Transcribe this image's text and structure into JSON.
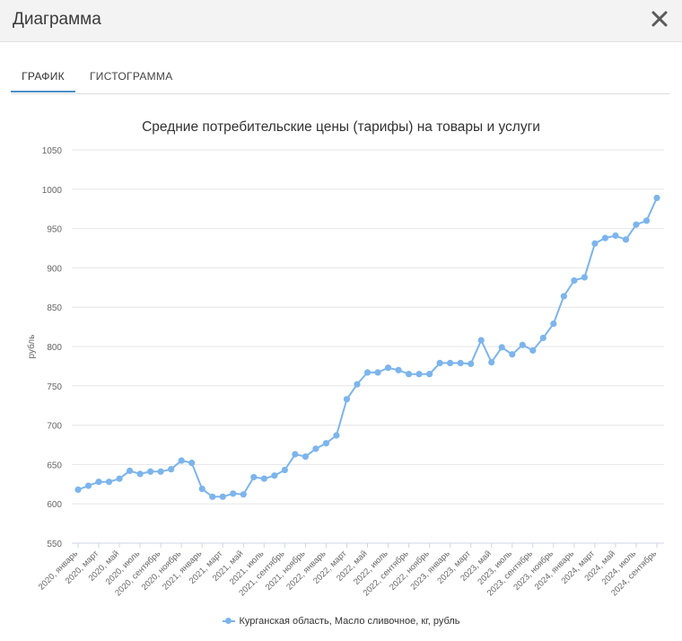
{
  "window": {
    "title": "Диаграмма",
    "close_icon": "close-icon"
  },
  "tabs": [
    {
      "label": "ГРАФИК",
      "active": true
    },
    {
      "label": "ГИСТОГРАММА",
      "active": false
    }
  ],
  "colors": {
    "series": "#7cb5ec",
    "grid": "#e6e6e6",
    "tab_underline": "#4a90c8"
  },
  "chart_data": {
    "type": "line",
    "title": "Средние потребительские цены (тарифы) на товары и услуги",
    "ylabel": "рубль",
    "xlabel": "",
    "ylim": [
      550,
      1050
    ],
    "yticks": [
      550,
      600,
      650,
      700,
      750,
      800,
      850,
      900,
      950,
      1000,
      1050
    ],
    "grid": true,
    "legend_position": "bottom",
    "x": [
      "2020, январь",
      "2020, февраль",
      "2020, март",
      "2020, апрель",
      "2020, май",
      "2020, июнь",
      "2020, июль",
      "2020, август",
      "2020, сентябрь",
      "2020, октябрь",
      "2020, ноябрь",
      "2020, декабрь",
      "2021, январь",
      "2021, февраль",
      "2021, март",
      "2021, апрель",
      "2021, май",
      "2021, июнь",
      "2021, июль",
      "2021, август",
      "2021, сентябрь",
      "2021, октябрь",
      "2021, ноябрь",
      "2021, декабрь",
      "2022, январь",
      "2022, февраль",
      "2022, март",
      "2022, апрель",
      "2022, май",
      "2022, июнь",
      "2022, июль",
      "2022, август",
      "2022, сентябрь",
      "2022, октябрь",
      "2022, ноябрь",
      "2022, декабрь",
      "2023, январь",
      "2023, февраль",
      "2023, март",
      "2023, апрель",
      "2023, май",
      "2023, июнь",
      "2023, июль",
      "2023, август",
      "2023, сентябрь",
      "2023, октябрь",
      "2023, ноябрь",
      "2023, декабрь",
      "2024, январь",
      "2024, февраль",
      "2024, март",
      "2024, апрель",
      "2024, май",
      "2024, июнь",
      "2024, июль",
      "2024, август",
      "2024, сентябрь"
    ],
    "tick_labels": [
      "2020, январь",
      "2020, март",
      "2020, май",
      "2020, июль",
      "2020, сентябрь",
      "2020, ноябрь",
      "2021, январь",
      "2021, март",
      "2021, май",
      "2021, июль",
      "2021, сентябрь",
      "2021, ноябрь",
      "2022, январь",
      "2022, март",
      "2022, май",
      "2022, июль",
      "2022, сентябрь",
      "2022, ноябрь",
      "2023, январь",
      "2023, март",
      "2023, май",
      "2023, июль",
      "2023, сентябрь",
      "2023, ноябрь",
      "2024, январь",
      "2024, март",
      "2024, май",
      "2024, июль",
      "2024, сентябрь"
    ],
    "series": [
      {
        "name": "Курганская область, Масло сливочное, кг, рубль",
        "values": [
          618,
          623,
          628,
          628,
          632,
          642,
          638,
          641,
          641,
          644,
          655,
          652,
          619,
          609,
          609,
          613,
          612,
          634,
          632,
          636,
          643,
          663,
          660,
          670,
          677,
          687,
          733,
          752,
          767,
          767,
          773,
          770,
          765,
          765,
          765,
          779,
          779,
          779,
          778,
          808,
          780,
          799,
          790,
          802,
          795,
          811,
          829,
          864,
          884,
          888,
          931,
          938,
          941,
          936,
          955,
          960,
          989
        ]
      }
    ]
  }
}
